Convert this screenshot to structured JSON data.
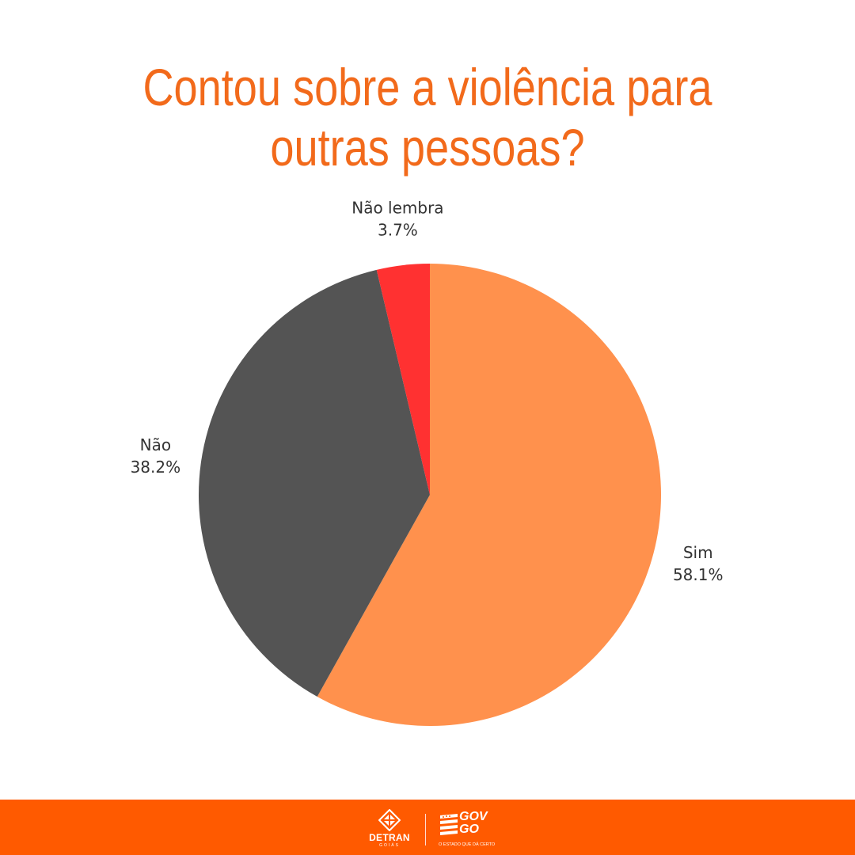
{
  "chart_data": {
    "type": "pie",
    "title_lines": [
      "Contou sobre a violência para",
      "outras pessoas?"
    ],
    "slices": [
      {
        "label": "Sim",
        "value": 58.1,
        "value_label": "58.1%",
        "color": "#FF914D"
      },
      {
        "label": "Não",
        "value": 38.2,
        "value_label": "38.2%",
        "color": "#545454"
      },
      {
        "label": "Não lembra",
        "value": 3.7,
        "value_label": "3.7%",
        "color": "#FF3131"
      }
    ],
    "start": "12 o'clock",
    "direction": "clockwise",
    "legend": "none",
    "label_color": "#333333"
  },
  "footer": {
    "background": "#FF5A00",
    "detran": {
      "name": "DETRAN",
      "sub": "GOIÁS",
      "icon": "detran-emblem-icon"
    },
    "gov": {
      "line1": "GOV",
      "line2": "GO",
      "tagline": "O ESTADO QUE DÁ CERTO",
      "icon": "goias-flag-icon"
    }
  }
}
